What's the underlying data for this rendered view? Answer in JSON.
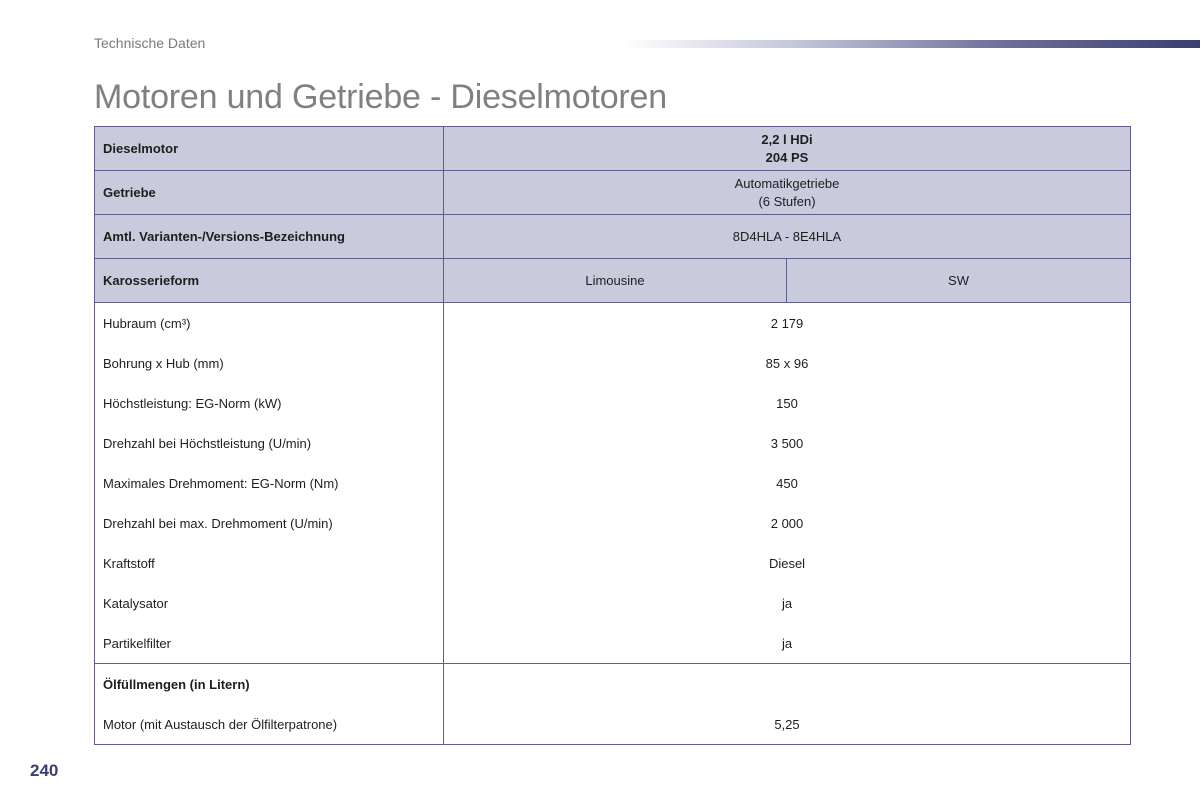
{
  "header": {
    "section": "Technische Daten",
    "title": "Motoren und Getriebe - Dieselmotoren"
  },
  "table": {
    "engine_label": "Dieselmotor",
    "engine_value_line1": "2,2 l HDi",
    "engine_value_line2": "204 PS",
    "gearbox_label": "Getriebe",
    "gearbox_value_line1": "Automatikgetriebe",
    "gearbox_value_line2": "(6 Stufen)",
    "variant_label": "Amtl. Varianten-/Versions-Bezeichnung",
    "variant_value": "8D4HLA - 8E4HLA",
    "body_label": "Karosserieform",
    "body_value_1": "Limousine",
    "body_value_2": "SW",
    "rows": [
      {
        "label": "Hubraum (cm³)",
        "value": "2 179"
      },
      {
        "label": "Bohrung x Hub (mm)",
        "value": "85 x 96"
      },
      {
        "label": "Höchstleistung: EG-Norm (kW)",
        "value": "150"
      },
      {
        "label": "Drehzahl bei Höchstleistung (U/min)",
        "value": "3 500"
      },
      {
        "label": "Maximales Drehmoment: EG-Norm (Nm)",
        "value": "450"
      },
      {
        "label": "Drehzahl bei max. Drehmoment (U/min)",
        "value": "2 000"
      },
      {
        "label": "Kraftstoff",
        "value": "Diesel"
      },
      {
        "label": "Katalysator",
        "value": "ja"
      },
      {
        "label": "Partikelfilter",
        "value": "ja"
      }
    ],
    "oil_label": "Ölfüllmengen (in Litern)",
    "oil_rows": [
      {
        "label": "Motor (mit Austausch der Ölfilterpatrone)",
        "value": "5,25"
      }
    ]
  },
  "footer": {
    "page_number": "240"
  }
}
